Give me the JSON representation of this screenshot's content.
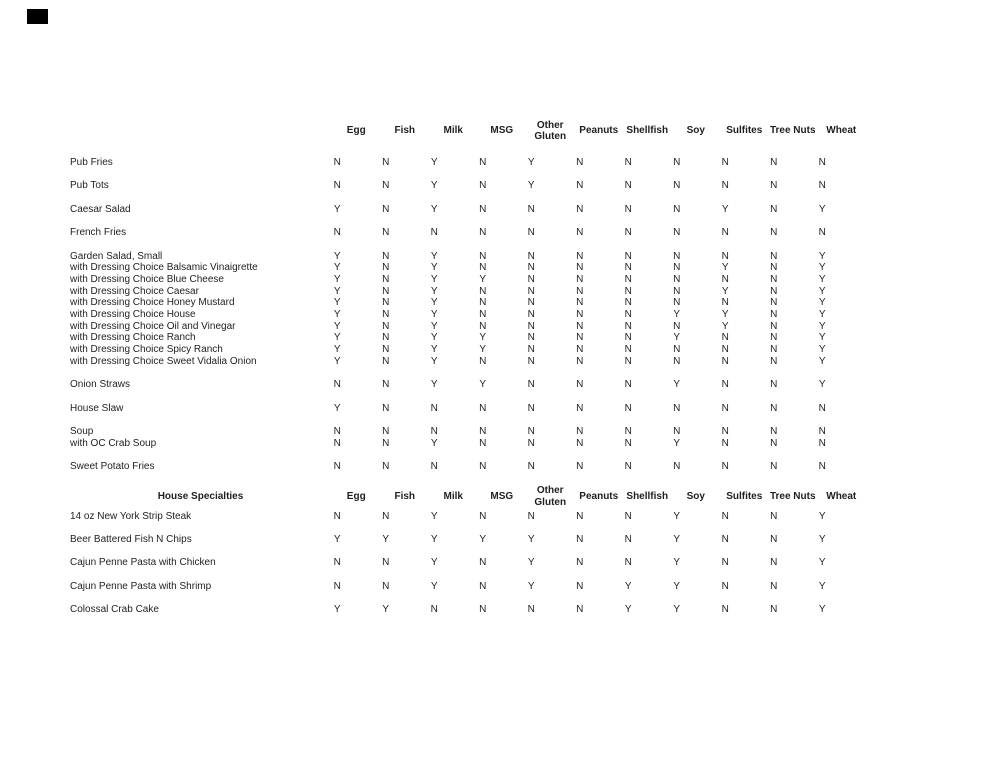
{
  "page": {
    "background_color": "#ffffff",
    "text_color": "#1f1f1f",
    "artifact_color": "#000000"
  },
  "columns": [
    {
      "label": "Egg"
    },
    {
      "label": "Fish"
    },
    {
      "label": "Milk"
    },
    {
      "label": "MSG"
    },
    {
      "label": "Other\nGluten"
    },
    {
      "label": "Peanuts"
    },
    {
      "label": "Shellfish"
    },
    {
      "label": "Soy"
    },
    {
      "label": "Sulfites"
    },
    {
      "label": "Tree Nuts"
    },
    {
      "label": "Wheat"
    }
  ],
  "sections": [
    {
      "title": "",
      "groups": [
        {
          "rows": [
            {
              "label": "Pub Fries",
              "values": [
                "N",
                "N",
                "Y",
                "N",
                "Y",
                "N",
                "N",
                "N",
                "N",
                "N",
                "N"
              ]
            }
          ]
        },
        {
          "rows": [
            {
              "label": "Pub Tots",
              "values": [
                "N",
                "N",
                "Y",
                "N",
                "Y",
                "N",
                "N",
                "N",
                "N",
                "N",
                "N"
              ]
            }
          ]
        },
        {
          "rows": [
            {
              "label": "Caesar Salad",
              "values": [
                "Y",
                "N",
                "Y",
                "N",
                "N",
                "N",
                "N",
                "N",
                "Y",
                "N",
                "Y"
              ]
            }
          ]
        },
        {
          "rows": [
            {
              "label": "French Fries",
              "values": [
                "N",
                "N",
                "N",
                "N",
                "N",
                "N",
                "N",
                "N",
                "N",
                "N",
                "N"
              ]
            }
          ]
        },
        {
          "rows": [
            {
              "label": "Garden Salad, Small",
              "values": [
                "Y",
                "N",
                "Y",
                "N",
                "N",
                "N",
                "N",
                "N",
                "N",
                "N",
                "Y"
              ]
            },
            {
              "label": "with Dressing Choice Balsamic Vinaigrette",
              "values": [
                "Y",
                "N",
                "Y",
                "N",
                "N",
                "N",
                "N",
                "N",
                "Y",
                "N",
                "Y"
              ]
            },
            {
              "label": "with Dressing Choice Blue Cheese",
              "values": [
                "Y",
                "N",
                "Y",
                "Y",
                "N",
                "N",
                "N",
                "N",
                "N",
                "N",
                "Y"
              ]
            },
            {
              "label": "with Dressing Choice Caesar",
              "values": [
                "Y",
                "N",
                "Y",
                "N",
                "N",
                "N",
                "N",
                "N",
                "Y",
                "N",
                "Y"
              ]
            },
            {
              "label": "with Dressing Choice Honey Mustard",
              "values": [
                "Y",
                "N",
                "Y",
                "N",
                "N",
                "N",
                "N",
                "N",
                "N",
                "N",
                "Y"
              ]
            },
            {
              "label": "with Dressing Choice House",
              "values": [
                "Y",
                "N",
                "Y",
                "N",
                "N",
                "N",
                "N",
                "Y",
                "Y",
                "N",
                "Y"
              ]
            },
            {
              "label": "with Dressing Choice Oil and Vinegar",
              "values": [
                "Y",
                "N",
                "Y",
                "N",
                "N",
                "N",
                "N",
                "N",
                "Y",
                "N",
                "Y"
              ]
            },
            {
              "label": "with Dressing Choice Ranch",
              "values": [
                "Y",
                "N",
                "Y",
                "Y",
                "N",
                "N",
                "N",
                "Y",
                "N",
                "N",
                "Y"
              ]
            },
            {
              "label": "with Dressing Choice Spicy Ranch",
              "values": [
                "Y",
                "N",
                "Y",
                "Y",
                "N",
                "N",
                "N",
                "N",
                "N",
                "N",
                "Y"
              ]
            },
            {
              "label": "with Dressing Choice Sweet Vidalia Onion",
              "values": [
                "Y",
                "N",
                "Y",
                "N",
                "N",
                "N",
                "N",
                "N",
                "N",
                "N",
                "Y"
              ]
            }
          ]
        },
        {
          "rows": [
            {
              "label": "Onion Straws",
              "values": [
                "N",
                "N",
                "Y",
                "Y",
                "N",
                "N",
                "N",
                "Y",
                "N",
                "N",
                "Y"
              ]
            }
          ]
        },
        {
          "rows": [
            {
              "label": "House Slaw",
              "values": [
                "Y",
                "N",
                "N",
                "N",
                "N",
                "N",
                "N",
                "N",
                "N",
                "N",
                "N"
              ]
            }
          ]
        },
        {
          "rows": [
            {
              "label": "Soup",
              "values": [
                "N",
                "N",
                "N",
                "N",
                "N",
                "N",
                "N",
                "N",
                "N",
                "N",
                "N"
              ]
            },
            {
              "label": "with OC Crab Soup",
              "values": [
                "N",
                "N",
                "Y",
                "N",
                "N",
                "N",
                "N",
                "Y",
                "N",
                "N",
                "N"
              ]
            }
          ]
        },
        {
          "rows": [
            {
              "label": "Sweet Potato Fries",
              "values": [
                "N",
                "N",
                "N",
                "N",
                "N",
                "N",
                "N",
                "N",
                "N",
                "N",
                "N"
              ]
            }
          ]
        }
      ]
    },
    {
      "title": "House Specialties",
      "groups": [
        {
          "rows": [
            {
              "label": "14 oz New York Strip Steak",
              "values": [
                "N",
                "N",
                "Y",
                "N",
                "N",
                "N",
                "N",
                "Y",
                "N",
                "N",
                "Y"
              ]
            }
          ]
        },
        {
          "rows": [
            {
              "label": "Beer Battered Fish N Chips",
              "values": [
                "Y",
                "Y",
                "Y",
                "Y",
                "Y",
                "N",
                "N",
                "Y",
                "N",
                "N",
                "Y"
              ]
            }
          ]
        },
        {
          "rows": [
            {
              "label": "Cajun Penne Pasta with Chicken",
              "values": [
                "N",
                "N",
                "Y",
                "N",
                "Y",
                "N",
                "N",
                "Y",
                "N",
                "N",
                "Y"
              ]
            }
          ]
        },
        {
          "rows": [
            {
              "label": "Cajun Penne Pasta with Shrimp",
              "values": [
                "N",
                "N",
                "Y",
                "N",
                "Y",
                "N",
                "Y",
                "Y",
                "N",
                "N",
                "Y"
              ]
            }
          ]
        },
        {
          "rows": [
            {
              "label": "Colossal Crab Cake",
              "values": [
                "Y",
                "Y",
                "N",
                "N",
                "N",
                "N",
                "Y",
                "Y",
                "N",
                "N",
                "Y"
              ]
            }
          ]
        }
      ]
    }
  ]
}
